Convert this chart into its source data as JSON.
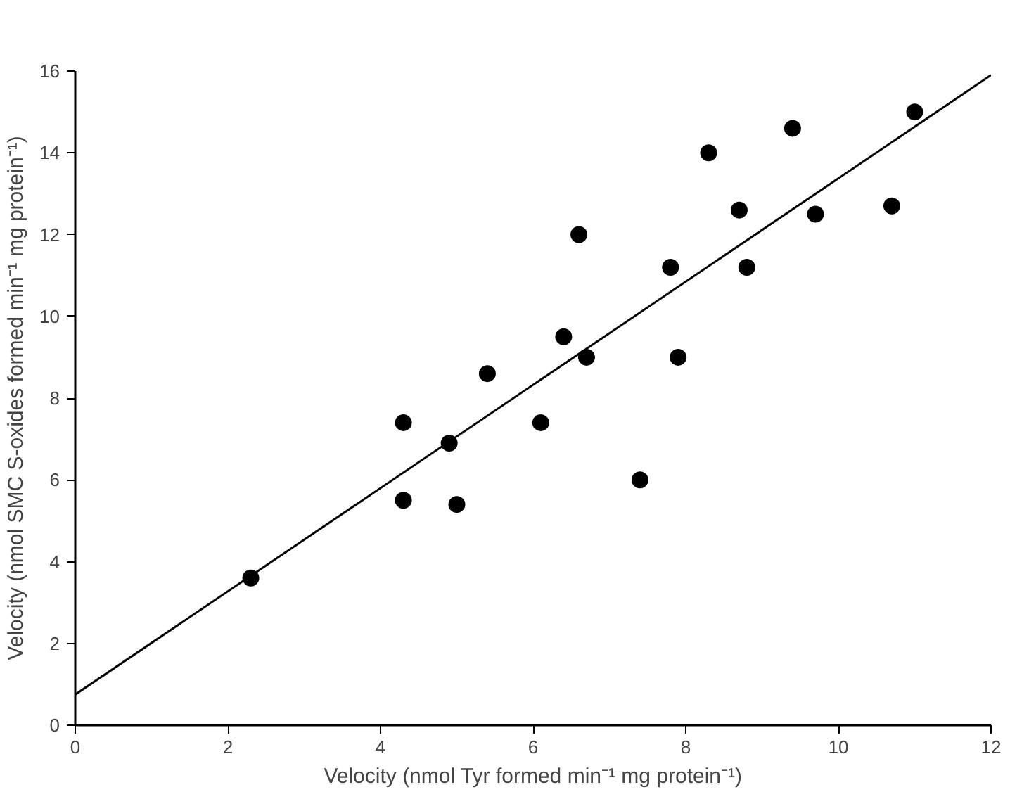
{
  "chart_data": {
    "type": "scatter",
    "xlabel": "Velocity (nmol Tyr formed min⁻¹ mg protein⁻¹)",
    "ylabel": "Velocity (nmol SMC S-oxides formed min⁻¹ mg protein⁻¹)",
    "xlim": [
      0,
      12
    ],
    "ylim": [
      0,
      16
    ],
    "xticks": [
      0,
      2,
      4,
      6,
      8,
      10,
      12
    ],
    "yticks": [
      0,
      2,
      4,
      6,
      8,
      10,
      12,
      14,
      16
    ],
    "grid": false,
    "series": [
      {
        "marker": "circle",
        "color": "#000000",
        "x": [
          2.3,
          4.3,
          4.3,
          4.9,
          5.0,
          5.4,
          6.1,
          6.4,
          6.6,
          6.7,
          7.4,
          7.8,
          7.9,
          8.3,
          8.7,
          8.8,
          9.4,
          9.7,
          10.7,
          11.0
        ],
        "values": [
          3.6,
          7.4,
          5.5,
          6.9,
          5.4,
          8.6,
          7.4,
          9.5,
          12.0,
          9.0,
          6.0,
          11.2,
          9.0,
          14.0,
          12.6,
          11.2,
          14.6,
          12.5,
          12.7,
          15.0
        ]
      },
      {
        "type": "line",
        "marker": "none",
        "color": "#000000",
        "x": [
          0,
          12
        ],
        "values": [
          0.75,
          15.9
        ]
      }
    ]
  }
}
